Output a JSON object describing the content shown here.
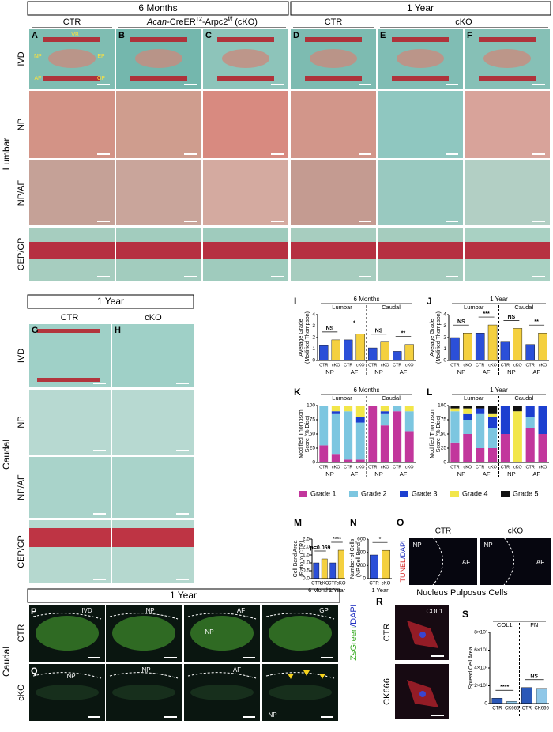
{
  "header": {
    "sections": [
      "6 Months",
      "1 Year"
    ]
  },
  "lumbar": {
    "region": "Lumbar",
    "column_titles": [
      "CTR",
      "CTR",
      "cKO"
    ],
    "cko_title": {
      "gene": "Acan",
      "driver": "-CreER",
      "driver_sup": "T2",
      "allele": "-Arpc2",
      "allele_sup": "f/f",
      "suffix": " (cKO)"
    },
    "panel_letters": [
      "A",
      "B",
      "C",
      "D",
      "E",
      "F"
    ],
    "row_labels": [
      "IVD",
      "NP",
      "NP/AF",
      "CEP/GP"
    ],
    "annotations": [
      "VB",
      "NP",
      "EP",
      "AF",
      "GP"
    ]
  },
  "caudal": {
    "title": "1 Year",
    "region": "Caudal",
    "column_titles": [
      "CTR",
      "cKO"
    ],
    "panel_letters": [
      "G",
      "H"
    ],
    "row_labels": [
      "IVD",
      "NP",
      "NP/AF",
      "CEP/GP"
    ]
  },
  "charts": {
    "I": {
      "type": "bar",
      "letter": "I",
      "title": "6 Months",
      "ylabel": [
        "Average Grade",
        "(Modified Thompson)"
      ],
      "ylim": [
        0,
        4
      ],
      "yticks": [
        0,
        1,
        2,
        3,
        4
      ],
      "groups": [
        "Lumbar",
        "Caudal"
      ],
      "categories": [
        "CTR",
        "cKO",
        "CTR",
        "cKO",
        "CTR",
        "cKO",
        "CTR",
        "cKO"
      ],
      "pair_labels": [
        "NP",
        "AF",
        "NP",
        "AF"
      ],
      "values": [
        1.3,
        1.8,
        1.8,
        2.3,
        1.1,
        1.6,
        0.8,
        1.4
      ],
      "bar_colors": [
        "#2b4fd8",
        "#f4d03f"
      ],
      "significance": [
        "NS",
        "*",
        "NS",
        "**"
      ]
    },
    "J": {
      "type": "bar",
      "letter": "J",
      "title": "1 Year",
      "ylabel": [
        "Average Grade",
        "(Modified Thompson)"
      ],
      "ylim": [
        0,
        4
      ],
      "yticks": [
        0,
        1,
        2,
        3,
        4
      ],
      "groups": [
        "Lumbar",
        "Caudal"
      ],
      "categories": [
        "CTR",
        "cKO",
        "CTR",
        "cKO",
        "CTR",
        "cKO",
        "CTR",
        "cKO"
      ],
      "pair_labels": [
        "NP",
        "AF",
        "NP",
        "AF"
      ],
      "values": [
        2.0,
        2.4,
        2.4,
        3.1,
        1.6,
        2.8,
        1.4,
        2.4
      ],
      "bar_colors": [
        "#2b4fd8",
        "#f4d03f"
      ],
      "significance": [
        "NS",
        "***",
        "NS",
        "**"
      ]
    },
    "K": {
      "type": "stacked_bar",
      "letter": "K",
      "title": "6 Months",
      "ylabel": [
        "Modified Thompson",
        "Score (% Disc)"
      ],
      "ylim": [
        0,
        100
      ],
      "yticks": [
        0,
        25,
        50,
        75,
        100
      ],
      "groups": [
        "Lumbar",
        "Caudal"
      ],
      "categories": [
        "CTR",
        "cKO",
        "CTR",
        "cKO",
        "CTR",
        "cKO",
        "CTR",
        "cKO"
      ],
      "pair_labels": [
        "NP",
        "AF",
        "NP",
        "AF"
      ],
      "series": [
        {
          "name": "Grade 1",
          "color": "#c2369c",
          "values": [
            30,
            15,
            5,
            5,
            100,
            65,
            90,
            55
          ]
        },
        {
          "name": "Grade 2",
          "color": "#7cc6e0",
          "values": [
            70,
            70,
            85,
            65,
            0,
            20,
            10,
            35
          ]
        },
        {
          "name": "Grade 3",
          "color": "#1c3fd0",
          "values": [
            0,
            5,
            0,
            10,
            0,
            5,
            0,
            0
          ]
        },
        {
          "name": "Grade 4",
          "color": "#f2e64a",
          "values": [
            0,
            10,
            10,
            20,
            0,
            10,
            0,
            10
          ]
        },
        {
          "name": "Grade 5",
          "color": "#111111",
          "values": [
            0,
            0,
            0,
            0,
            0,
            0,
            0,
            0
          ]
        }
      ]
    },
    "L": {
      "type": "stacked_bar",
      "letter": "L",
      "title": "1 Year",
      "ylabel": [
        "Modified Thompson",
        "Score (% Disc)"
      ],
      "ylim": [
        0,
        100
      ],
      "yticks": [
        0,
        25,
        50,
        75,
        100
      ],
      "groups": [
        "Lumbar",
        "Caudal"
      ],
      "categories": [
        "CTR",
        "cKO",
        "CTR",
        "cKO",
        "CTR",
        "cKO",
        "CTR",
        "cKO"
      ],
      "pair_labels": [
        "NP",
        "AF",
        "NP",
        "AF"
      ],
      "series": [
        {
          "color": "#c2369c",
          "values": [
            35,
            50,
            25,
            25,
            50,
            0,
            60,
            50
          ]
        },
        {
          "color": "#7cc6e0",
          "values": [
            55,
            25,
            60,
            35,
            0,
            0,
            20,
            0
          ]
        },
        {
          "color": "#1c3fd0",
          "values": [
            0,
            10,
            10,
            20,
            50,
            0,
            20,
            50
          ]
        },
        {
          "color": "#f2e64a",
          "values": [
            5,
            10,
            0,
            5,
            0,
            90,
            0,
            0
          ]
        },
        {
          "color": "#111111",
          "values": [
            5,
            5,
            5,
            15,
            0,
            10,
            0,
            0
          ]
        }
      ]
    },
    "M": {
      "type": "bar",
      "letter": "M",
      "ylabel": [
        "Cell Band Area",
        "(Ratio to CTR)"
      ],
      "ylim": [
        0,
        2.5
      ],
      "yticks": [
        {
          "value": 0,
          "label": "0.0"
        },
        {
          "value": 0.5,
          "label": "0.5"
        },
        {
          "value": 1,
          "label": "1.0"
        },
        {
          "value": 1.5,
          "label": "1.5"
        },
        {
          "value": 2,
          "label": "2.0"
        },
        {
          "value": 2.5,
          "label": "2.5"
        }
      ],
      "categories": [
        "CTR",
        "cKO",
        "CTR",
        "cKO"
      ],
      "pair_labels": [
        "6 Months",
        "1 Year"
      ],
      "values": [
        1.0,
        1.25,
        1.0,
        1.8
      ],
      "bar_colors": [
        "#2b4fd8",
        "#f4d03f"
      ],
      "significance": [
        "p=0.059",
        "****"
      ]
    },
    "N": {
      "type": "bar",
      "letter": "N",
      "ylabel": [
        "Number of Cells",
        "(NP Cell Band)"
      ],
      "ylim": [
        0,
        600
      ],
      "yticks": [
        0,
        200,
        400,
        600
      ],
      "categories": [
        "CTR",
        "cKO"
      ],
      "pair_labels": [
        "1 Year"
      ],
      "values": [
        360,
        430
      ],
      "bar_colors": [
        "#2b4fd8",
        "#f4d03f"
      ],
      "significance": [
        "*"
      ]
    },
    "S": {
      "type": "bar",
      "letter": "S",
      "ylabel": [
        "Spread Cell Area"
      ],
      "ylim": [
        0,
        8000
      ],
      "yticks": [
        0,
        {
          "value": 2000,
          "label": "2×10³"
        },
        {
          "value": 4000,
          "label": "4×10³"
        },
        {
          "value": 6000,
          "label": "6×10³"
        },
        {
          "value": 8000,
          "label": "8×10³"
        }
      ],
      "groups": [
        "COL1",
        "FN"
      ],
      "categories": [
        "CTR",
        "CK666",
        "CTR",
        "CK666"
      ],
      "values": [
        600,
        250,
        1800,
        1700
      ],
      "bar_colors": [
        "#2a58b8",
        "#8fc7e8"
      ],
      "significance": [
        "****",
        "NS"
      ]
    }
  },
  "tunel": {
    "letter": "O",
    "column_titles": [
      "CTR",
      "cKO"
    ],
    "region_labels": [
      "NP",
      "AF",
      "NP",
      "AF"
    ],
    "stain": [
      "TUNEL",
      "/DAPI"
    ]
  },
  "zsgreen": {
    "title": "1 Year",
    "region": "Caudal",
    "panel_letters": [
      "P",
      "Q"
    ],
    "row_labels": [
      "CTR",
      "cKO"
    ],
    "p_labels": [
      "IVD",
      "NP",
      "NP",
      "AF",
      "GP"
    ],
    "q_labels": [
      "NP",
      "NP",
      "AF",
      "NP"
    ],
    "stain": [
      "ZsGreen",
      "/DAPI"
    ]
  },
  "cells": {
    "letter": "R",
    "title": "Nucleus Pulposus Cells",
    "stain": "COL1",
    "row_labels": [
      "CTR",
      "CK666"
    ]
  }
}
